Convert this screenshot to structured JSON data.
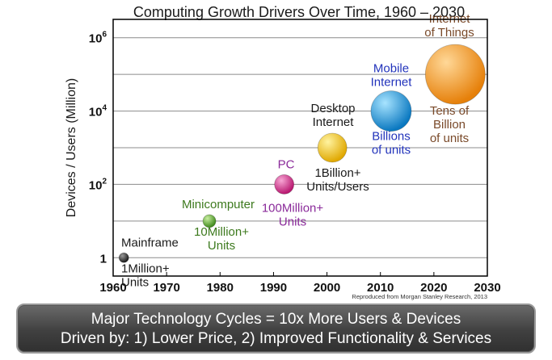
{
  "colors": {
    "grid": "#8c8c8c",
    "axis": "#000000",
    "mainframe": "#333333",
    "minicomputer": "#5aa02c",
    "pc": "#d6318f",
    "desktop_internet": "#f2c100",
    "mobile_internet": "#1a97d9",
    "iot": "#f59a1c",
    "label_dark": "#1a1a1a",
    "label_green": "#3d7a1e",
    "label_purple": "#8a2a9a",
    "label_blue": "#2233bb",
    "label_brown": "#7a4a2a"
  },
  "chart_data": {
    "type": "scatter",
    "title": "Computing Growth Drivers Over Time, 1960 – 2030",
    "xlabel": "",
    "ylabel": "Devices / Users (Million)",
    "xlim": [
      1960,
      2030
    ],
    "ylim_log10": [
      -0.5,
      6.5
    ],
    "log_scale_y": true,
    "grid": true,
    "x_ticks": [
      "1960",
      "1970",
      "1980",
      "1990",
      "2000",
      "2010",
      "2020",
      "2030"
    ],
    "y_ticks": [
      {
        "value": 1,
        "base": "1",
        "exp": ""
      },
      {
        "value": 100,
        "base": "10",
        "exp": "2"
      },
      {
        "value": 10000,
        "base": "10",
        "exp": "4"
      },
      {
        "value": 1000000,
        "base": "10",
        "exp": "6"
      }
    ],
    "points": [
      {
        "name": "Mainframe",
        "x": 1962,
        "y": 1,
        "name_lines": [
          "Mainframe"
        ],
        "sub_lines": [
          "1Million+",
          "Units"
        ]
      },
      {
        "name": "Minicomputer",
        "x": 1978,
        "y": 10,
        "name_lines": [
          "Minicomputer"
        ],
        "sub_lines": [
          "10Million+",
          "Units"
        ]
      },
      {
        "name": "PC",
        "x": 1992,
        "y": 100,
        "name_lines": [
          "PC"
        ],
        "sub_lines": [
          "100Million+",
          "Units"
        ]
      },
      {
        "name": "Desktop Internet",
        "x": 2001,
        "y": 1000,
        "name_lines": [
          "Desktop",
          "Internet"
        ],
        "sub_lines": [
          "1Billion+",
          "Units/Users"
        ]
      },
      {
        "name": "Mobile Internet",
        "x": 2012,
        "y": 10000,
        "name_lines": [
          "Mobile",
          "Internet"
        ],
        "sub_lines": [
          "Billions",
          "of units"
        ]
      },
      {
        "name": "Internet of Things",
        "x": 2024,
        "y": 100000,
        "name_lines": [
          "Internet",
          "of Things"
        ],
        "sub_lines": [
          "Tens of",
          "Billion",
          "of units"
        ]
      }
    ],
    "source_note": "Reproduced from Morgan Stanley Research, 2013"
  },
  "footer": {
    "line1": "Major Technology Cycles = 10x More Users & Devices",
    "line2": "Driven by: 1) Lower Price, 2) Improved Functionality & Services"
  }
}
